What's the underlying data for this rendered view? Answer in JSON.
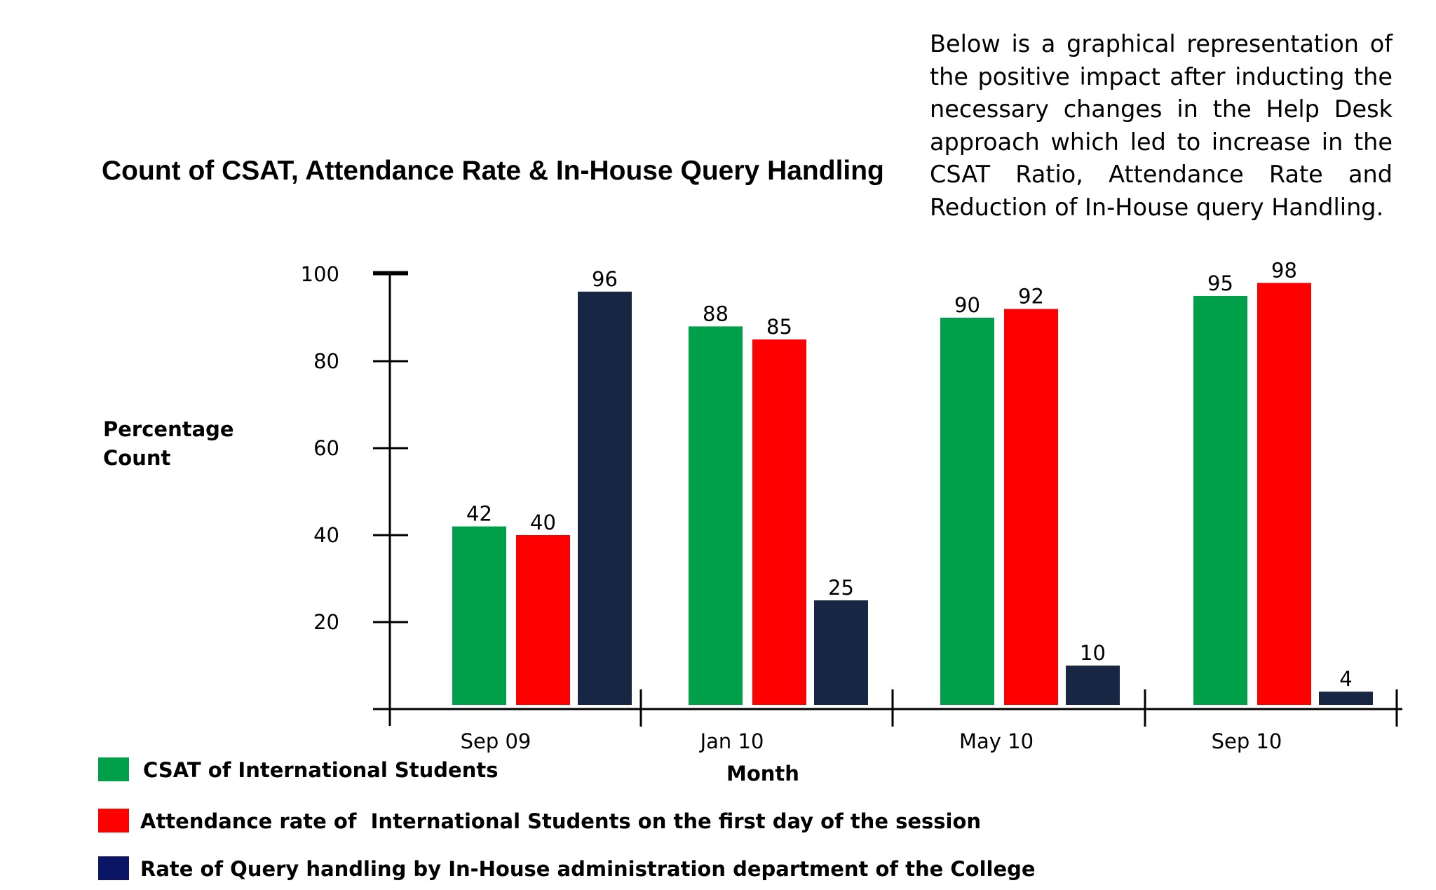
{
  "description": "Below is a graphical representation of the positive impact after inducting the necessary changes in the Help Desk approach which led to increase in the CSAT Ratio, Attendance Rate and Reduction of In-House query Handling.",
  "chart_data": {
    "type": "bar",
    "title": "Count of CSAT, Attendance Rate & In-House Query Handling",
    "xlabel": "Month",
    "ylabel": "Percentage Count",
    "categories": [
      "Sep 09",
      "Jan 10",
      "May 10",
      "Sep 10"
    ],
    "y_ticks": [
      20,
      40,
      60,
      80,
      100
    ],
    "series": [
      {
        "name": "CSAT of International Students",
        "color": "#00a04a",
        "values": [
          42,
          88,
          90,
          95
        ]
      },
      {
        "name": "Attendance rate of  International Students on the first day of the session",
        "color": "#ff0000",
        "values": [
          40,
          85,
          92,
          98
        ]
      },
      {
        "name": "Rate of Query handling by In-House administration department of the College",
        "color": "#172643",
        "values": [
          96,
          25,
          10,
          4
        ]
      }
    ],
    "legend_position": "bottom-left",
    "grid": false
  }
}
